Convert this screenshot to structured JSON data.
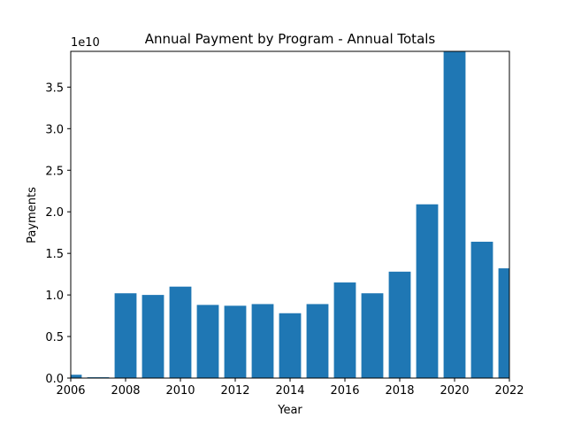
{
  "chart_data": {
    "type": "bar",
    "title": "Annual Payment by Program - Annual Totals",
    "xlabel": "Year",
    "ylabel": "Payments",
    "y_scale_label": "1e10",
    "xlim": [
      2006,
      2022
    ],
    "ylim": [
      0,
      3.93
    ],
    "x_ticks": [
      2006,
      2008,
      2010,
      2012,
      2014,
      2016,
      2018,
      2020,
      2022
    ],
    "y_ticks": [
      "0.0",
      "0.5",
      "1.0",
      "1.5",
      "2.0",
      "2.5",
      "3.0",
      "3.5"
    ],
    "categories": [
      2006,
      2007,
      2008,
      2009,
      2010,
      2011,
      2012,
      2013,
      2014,
      2015,
      2016,
      2017,
      2018,
      2019,
      2020,
      2021,
      2022
    ],
    "values": [
      0.04,
      0.01,
      1.02,
      1.0,
      1.1,
      0.88,
      0.87,
      0.89,
      0.78,
      0.89,
      1.15,
      1.02,
      1.28,
      2.09,
      3.93,
      1.64,
      1.32
    ],
    "value_units": "x 1e10",
    "bar_color": "#1f77b4"
  }
}
